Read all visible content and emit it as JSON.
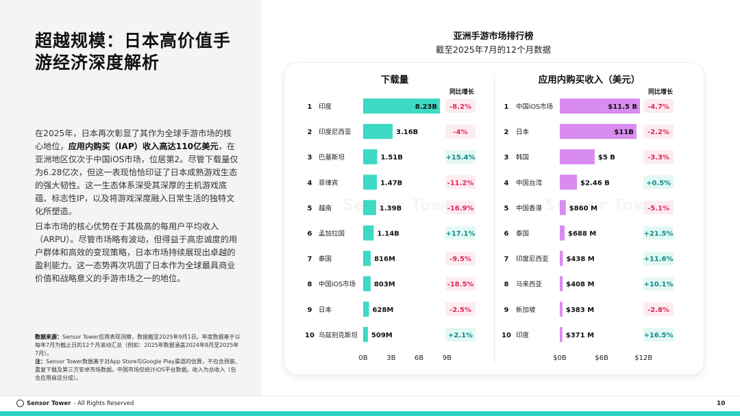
{
  "page": {
    "title": "超越规模：日本高价值手游经济深度解析",
    "paragraph1": {
      "p1": "在2025年，日本再次彰显了其作为全球手游市场的核心地位，",
      "bold": "应用内购买（IAP）收入高达110亿美元",
      "p2": "，在亚洲地区仅次于中国iOS市场，位居第2。尽管下载量仅为6.28亿次，但这一表现恰恰印证了日本成熟游戏生态的强大韧性。这一生态体系深受其深厚的主机游戏底蕴、标志性IP，以及将游戏深度融入日常生活的独特文化所塑造。"
    },
    "paragraph2": "日本市场的核心优势在于其极高的每用户平均收入（ARPU）。尽管市场略有波动，但得益于高忠诚度的用户群体和高效的变现策略，日本市场持续展现出卓越的盈利能力。这一态势再次巩固了日本作为全球最具商业价值和战略意义的手游市场之一的地位。",
    "notes": {
      "source_label": "数据来源：",
      "source_text": "Sensor Tower应用表现洞察，数据截至2025年9月1日。年度数据基于以每年7月为截止日的12个月滚动汇总（例如：2025年数据涵盖2024年8月至2025年7月）。",
      "note_label": "注：",
      "note_text": "Sensor Tower数据基于对App Store与Google Play渠道的估算，不包含预装、重复下载及第三方安卓市场数据。中国市场仅统计iOS平台数据。收入为总收入（包含应用商店分成）。"
    },
    "footer": {
      "brand": "Sensor Tower",
      "rights": " - All Rights Reserved",
      "page_number": "10"
    },
    "watermark": "Sensor Tower"
  },
  "colors": {
    "downloads_bar": "#3dd9c4",
    "revenue_bar": "#d98cf0",
    "negative_text": "#e0245e",
    "negative_bg": "#fdecef",
    "positive_text": "#0d8a82",
    "positive_bg": "#e3f8f5",
    "accent_stripe": "#2cd3c2"
  },
  "chart_data": {
    "type": "bar",
    "title": "亚洲手游市场排行榜",
    "subtitle": "截至2025年7月的12个月数据",
    "growth_header": "同比增长",
    "panels": [
      {
        "title": "下载量",
        "unit": "B",
        "ticks": [
          {
            "v": 0,
            "label": "0B"
          },
          {
            "v": 3,
            "label": "3B"
          },
          {
            "v": 6,
            "label": "6B"
          },
          {
            "v": 9,
            "label": "9B"
          }
        ],
        "xlim": [
          0,
          9
        ],
        "rows": [
          {
            "rank": "1",
            "name": "印度",
            "value": 8.23,
            "label": "8.23B",
            "growth": "-8.2%"
          },
          {
            "rank": "2",
            "name": "印度尼西亚",
            "value": 3.16,
            "label": "3.16B",
            "growth": "-4%"
          },
          {
            "rank": "3",
            "name": "巴基斯坦",
            "value": 1.51,
            "label": "1.51B",
            "growth": "+15.4%"
          },
          {
            "rank": "4",
            "name": "菲律宾",
            "value": 1.47,
            "label": "1.47B",
            "growth": "-11.2%"
          },
          {
            "rank": "5",
            "name": "越南",
            "value": 1.39,
            "label": "1.39B",
            "growth": "-16.9%"
          },
          {
            "rank": "6",
            "name": "孟加拉国",
            "value": 1.14,
            "label": "1.14B",
            "growth": "+17.1%"
          },
          {
            "rank": "7",
            "name": "泰国",
            "value": 0.816,
            "label": "816M",
            "growth": "-9.5%"
          },
          {
            "rank": "8",
            "name": "中国iOS市场",
            "value": 0.803,
            "label": "803M",
            "growth": "-18.5%"
          },
          {
            "rank": "9",
            "name": "日本",
            "value": 0.628,
            "label": "628M",
            "growth": "-2.5%"
          },
          {
            "rank": "10",
            "name": "乌兹别克斯坦",
            "value": 0.509,
            "label": "509M",
            "growth": "+2.1%"
          }
        ]
      },
      {
        "title": "应用内购买收入（美元）",
        "unit": "USD",
        "ticks": [
          {
            "v": 0,
            "label": "$0B"
          },
          {
            "v": 6,
            "label": "$6B"
          },
          {
            "v": 12,
            "label": "$12B"
          }
        ],
        "xlim": [
          0,
          12
        ],
        "rows": [
          {
            "rank": "1",
            "name": "中国iOS市场",
            "value": 11.5,
            "label": "$11.5 B",
            "growth": "-4.7%"
          },
          {
            "rank": "2",
            "name": "日本",
            "value": 11,
            "label": "$11B",
            "growth": "-2.2%"
          },
          {
            "rank": "3",
            "name": "韩国",
            "value": 5,
            "label": "$5 B",
            "growth": "-3.3%"
          },
          {
            "rank": "4",
            "name": "中国台湾",
            "value": 2.46,
            "label": "$2.46 B",
            "growth": "+0.5%"
          },
          {
            "rank": "5",
            "name": "中国香港",
            "value": 0.86,
            "label": "$860 M",
            "growth": "-5.1%"
          },
          {
            "rank": "6",
            "name": "泰国",
            "value": 0.688,
            "label": "$688 M",
            "growth": "+21.5%"
          },
          {
            "rank": "7",
            "name": "印度尼西亚",
            "value": 0.438,
            "label": "$438 M",
            "growth": "+11.6%"
          },
          {
            "rank": "8",
            "name": "马来西亚",
            "value": 0.408,
            "label": "$408 M",
            "growth": "+10.1%"
          },
          {
            "rank": "9",
            "name": "新加坡",
            "value": 0.383,
            "label": "$383 M",
            "growth": "-2.8%"
          },
          {
            "rank": "10",
            "name": "印度",
            "value": 0.371,
            "label": "$371 M",
            "growth": "+16.5%"
          }
        ]
      }
    ]
  }
}
